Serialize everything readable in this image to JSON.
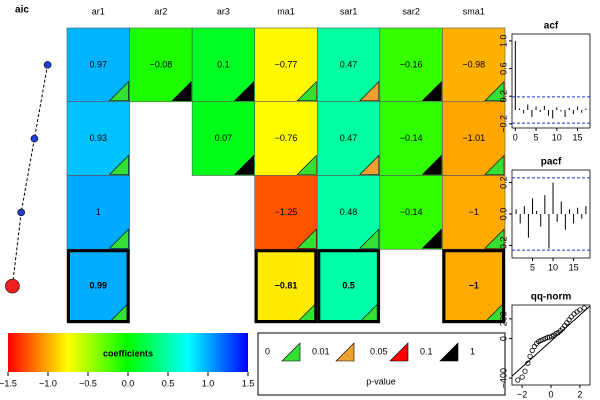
{
  "chart_data": [
    {
      "type": "heatmap",
      "columns": [
        "ar1",
        "ar2",
        "ar3",
        "ma1",
        "sar1",
        "sar2",
        "sma1"
      ],
      "values": [
        [
          0.97,
          -0.08,
          0.1,
          -0.77,
          0.47,
          -0.16,
          -0.98
        ],
        [
          0.93,
          null,
          0.07,
          -0.76,
          0.47,
          -0.14,
          -1.01
        ],
        [
          1,
          null,
          null,
          -1.25,
          0.48,
          -0.14,
          -1
        ],
        [
          0.99,
          null,
          null,
          -0.81,
          0.5,
          null,
          -1
        ]
      ],
      "value_labels": [
        [
          "0.97",
          "−0.08",
          "0.1",
          "−0.77",
          "0.47",
          "−0.16",
          "−0.98"
        ],
        [
          "0.93",
          null,
          "0.07",
          "−0.76",
          "0.47",
          "−0.14",
          "−1.01"
        ],
        [
          "1",
          null,
          null,
          "−1.25",
          "0.48",
          "−0.14",
          "−1"
        ],
        [
          "0.99",
          null,
          null,
          "−0.81",
          "0.5",
          null,
          "−1"
        ]
      ],
      "triangle_colors": [
        [
          "#33e033",
          "#000000",
          "#000000",
          "#33e033",
          "#f0a030",
          "#000000",
          "#33e033"
        ],
        [
          "#33e033",
          null,
          "#000000",
          "#33e033",
          "#f0a030",
          "#000000",
          "#33e033"
        ],
        [
          "#33e033",
          null,
          null,
          "#33e033",
          "#33e033",
          "#000000",
          "#33e033"
        ],
        [
          "#33e033",
          null,
          null,
          "#33e033",
          "#33e033",
          null,
          "#33e033"
        ]
      ],
      "selected_row": 3,
      "clim": [
        -1.5,
        1.5
      ],
      "colorbar_label": "coefficients",
      "colorbar_ticks": [
        {
          "value": -1.5,
          "label": "−1.5"
        },
        {
          "value": -1.0,
          "label": "−1.0"
        },
        {
          "value": -0.5,
          "label": "−0.5"
        },
        {
          "value": 0.0,
          "label": "0.0"
        },
        0.5,
        {
          "value": 1.0,
          "label": "1.0"
        },
        1.5
      ],
      "pvalue_legend": {
        "label": "p-value",
        "breaks": [
          0,
          0.01,
          0.05,
          0.1,
          1
        ],
        "colors": [
          "#33e033",
          "#f0a030",
          "#ff0000",
          "#000000"
        ]
      }
    },
    {
      "type": "line",
      "title": "aic",
      "values": [
        -520,
        -535,
        -550,
        -560
      ],
      "xlim": [
        -565,
        -515
      ],
      "color": "#2040d0",
      "best_color": "#ee2020"
    },
    {
      "type": "bar",
      "title": "acf",
      "x": [
        0,
        1,
        2,
        3,
        4,
        5,
        6,
        7,
        8,
        9,
        10,
        11,
        12,
        13,
        14,
        15,
        16,
        17
      ],
      "values": [
        1,
        0.02,
        -0.05,
        0.08,
        -0.1,
        0.05,
        -0.03,
        0.06,
        -0.08,
        -0.12,
        0.04,
        -0.02,
        -0.1,
        0.03,
        -0.06,
        0.05,
        -0.04,
        0.02
      ],
      "xlim": [
        -0.8,
        18
      ],
      "ylim": [
        -0.26,
        1.1
      ],
      "xticks": [
        0,
        5,
        10,
        15
      ],
      "yticks": [
        {
          "value": -0.2,
          "label": "−0.2"
        },
        0.2,
        0.6,
        {
          "value": 1.0,
          "label": "1.0"
        }
      ],
      "ci": [
        -0.19,
        0.19
      ],
      "ci_color": "#2030d0"
    },
    {
      "type": "bar",
      "title": "pacf",
      "x": [
        1,
        2,
        3,
        4,
        5,
        6,
        7,
        8,
        9,
        10,
        11,
        12,
        13,
        14,
        15,
        16,
        17,
        18
      ],
      "values": [
        0.03,
        -0.06,
        0.05,
        -0.15,
        0.1,
        0.02,
        -0.08,
        0.12,
        -0.22,
        0.2,
        -0.05,
        0.08,
        -0.1,
        0.03,
        -0.06,
        0.04,
        -0.03,
        0.05
      ],
      "xlim": [
        0,
        19
      ],
      "ylim": [
        -0.28,
        0.28
      ],
      "xticks": [
        5,
        10,
        15
      ],
      "yticks": [
        {
          "value": -0.2,
          "label": "−0.2"
        },
        {
          "value": 0.0,
          "label": "0.0"
        },
        0.2
      ],
      "ci": [
        -0.23,
        0.23
      ],
      "ci_color": "#2030d0"
    },
    {
      "type": "scatter",
      "title": "qq-norm",
      "x": [
        -2.3,
        -2.0,
        -1.8,
        -1.6,
        -1.45,
        -1.3,
        -1.15,
        -1.0,
        -0.85,
        -0.7,
        -0.55,
        -0.4,
        -0.25,
        -0.1,
        0.05,
        0.2,
        0.35,
        0.5,
        0.65,
        0.8,
        0.95,
        1.1,
        1.25,
        1.4,
        1.6,
        1.8,
        2.0,
        2.3
      ],
      "values": [
        -420,
        -390,
        -330,
        -250,
        -180,
        -120,
        -80,
        -50,
        -30,
        -20,
        -10,
        0,
        10,
        15,
        25,
        35,
        50,
        60,
        80,
        100,
        130,
        160,
        190,
        220,
        250,
        270,
        290,
        310
      ],
      "xlim": [
        -2.7,
        2.7
      ],
      "ylim": [
        -470,
        340
      ],
      "xticks": [
        {
          "value": -2,
          "label": "−2"
        },
        0,
        2
      ],
      "yticks": [
        {
          "value": -400,
          "label": "−400"
        },
        0,
        200
      ],
      "reference_line": {
        "x": [
          -2.7,
          2.7
        ],
        "y": [
          -380,
          330
        ]
      }
    }
  ]
}
